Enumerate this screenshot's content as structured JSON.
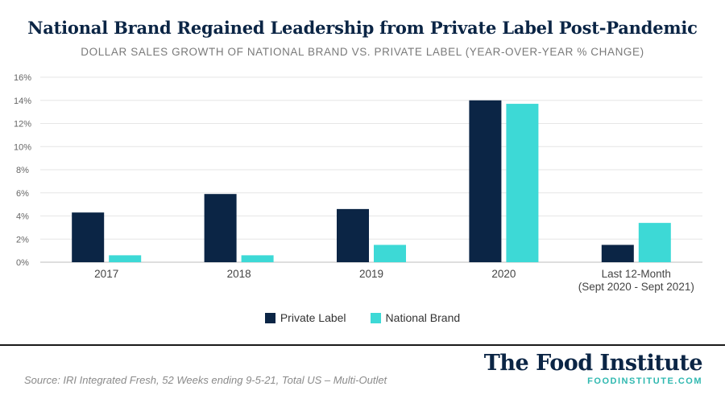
{
  "header": {
    "title": "National Brand Regained Leadership from Private Label Post-Pandemic",
    "subtitle": "DOLLAR SALES GROWTH OF NATIONAL BRAND VS. PRIVATE LABEL (YEAR-OVER-YEAR % CHANGE)"
  },
  "colors": {
    "private_label": "#0b2545",
    "national_brand": "#3dd9d6",
    "grid": "#e6e6e6",
    "axis_text": "#666666"
  },
  "chart_data": {
    "type": "bar",
    "categories": [
      "2017",
      "2018",
      "2019",
      "2020",
      "Last 12-Month\n(Sept 2020 - Sept 2021)"
    ],
    "series": [
      {
        "name": "Private Label",
        "values": [
          4.3,
          5.9,
          4.6,
          14.0,
          1.5
        ]
      },
      {
        "name": "National Brand",
        "values": [
          0.6,
          0.6,
          1.5,
          13.7,
          3.4
        ]
      }
    ],
    "yticks": [
      "0%",
      "2%",
      "4%",
      "6%",
      "8%",
      "10%",
      "12%",
      "14%",
      "16%"
    ],
    "ylim": [
      0,
      16
    ],
    "grid": true,
    "legend_position": "bottom"
  },
  "legend": [
    {
      "label": "Private Label"
    },
    {
      "label": "National Brand"
    }
  ],
  "footer": {
    "source": "Source: IRI Integrated Fresh, 52 Weeks ending 9-5-21, Total US – Multi-Outlet",
    "brand_name": "The Food Institute",
    "brand_url": "FOODINSTITUTE.COM"
  }
}
